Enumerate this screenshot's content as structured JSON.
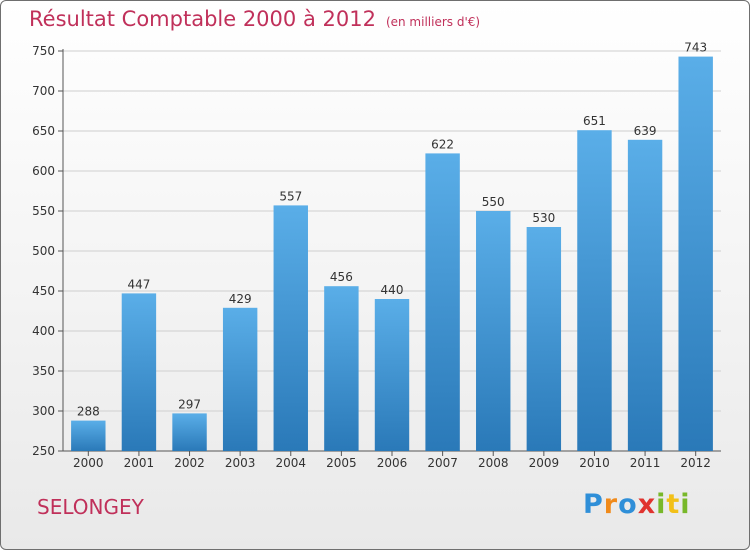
{
  "chart_data": {
    "type": "bar",
    "title": "Résultat Comptable 2000 à 2012",
    "subtitle": "(en milliers d'€)",
    "xlabel": "",
    "ylabel": "",
    "categories": [
      "2000",
      "2001",
      "2002",
      "2003",
      "2004",
      "2005",
      "2006",
      "2007",
      "2008",
      "2009",
      "2010",
      "2011",
      "2012"
    ],
    "values": [
      288,
      447,
      297,
      429,
      557,
      456,
      440,
      622,
      550,
      530,
      651,
      639,
      743
    ],
    "ylim": [
      250,
      750
    ],
    "yticks": [
      250,
      300,
      350,
      400,
      450,
      500,
      550,
      600,
      650,
      700,
      750
    ],
    "grid": true,
    "legend": "none",
    "bar_color_top": "#5aaee8",
    "bar_color_bottom": "#2a79b8",
    "title_color": "#c0305a"
  },
  "footer": {
    "place": "SELONGEY",
    "brand": "Proxiti"
  }
}
